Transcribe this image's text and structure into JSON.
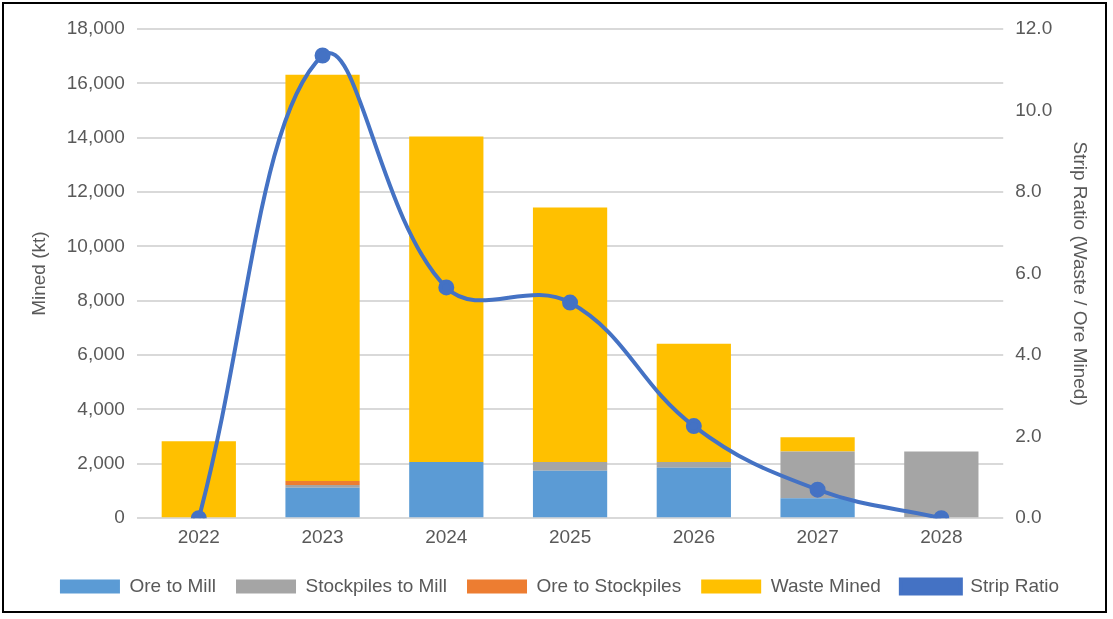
{
  "chart_data": {
    "type": "bar",
    "stacked": true,
    "ylabel": "Mined (kt)",
    "y2label": "Strip Ratio (Waste / Ore Mined)",
    "categories": [
      "2022",
      "2023",
      "2024",
      "2025",
      "2026",
      "2027",
      "2028"
    ],
    "series": [
      {
        "name": "Ore to Mill",
        "color": "#5b9bd5",
        "values": [
          0,
          1120,
          2070,
          1750,
          1860,
          730,
          0
        ]
      },
      {
        "name": "Stockpiles to Mill",
        "color": "#a5a5a5",
        "values": [
          0,
          100,
          0,
          320,
          210,
          1720,
          2450
        ]
      },
      {
        "name": "Ore to Stockpiles",
        "color": "#ed7d31",
        "values": [
          0,
          150,
          0,
          0,
          0,
          0,
          0
        ]
      },
      {
        "name": "Waste Mined",
        "color": "#ffc000",
        "values": [
          2830,
          14950,
          11970,
          9360,
          4350,
          530,
          0
        ]
      },
      {
        "name": "Strip Ratio",
        "type": "line",
        "axis": "y2",
        "color": "#4472c4",
        "marker": "circle",
        "line_style": "solid",
        "values": [
          0,
          11.35,
          5.66,
          5.29,
          2.26,
          0.7,
          0
        ]
      }
    ],
    "ylim": [
      0,
      18000
    ],
    "yticks": [
      {
        "value": 0,
        "label": "0"
      },
      {
        "value": 2000,
        "label": "2,000"
      },
      {
        "value": 4000,
        "label": "4,000"
      },
      {
        "value": 6000,
        "label": "6,000"
      },
      {
        "value": 8000,
        "label": "8,000"
      },
      {
        "value": 10000,
        "label": "10,000"
      },
      {
        "value": 12000,
        "label": "12,000"
      },
      {
        "value": 14000,
        "label": "14,000"
      },
      {
        "value": 16000,
        "label": "16,000"
      },
      {
        "value": 18000,
        "label": "18,000"
      }
    ],
    "y2lim": [
      0,
      12
    ],
    "y2ticks": [
      {
        "value": 0,
        "label": "0.0"
      },
      {
        "value": 2,
        "label": "2.0"
      },
      {
        "value": 4,
        "label": "4.0"
      },
      {
        "value": 6,
        "label": "6.0"
      },
      {
        "value": 8,
        "label": "8.0"
      },
      {
        "value": 10,
        "label": "10.0"
      },
      {
        "value": 12,
        "label": "12.0"
      }
    ],
    "grid": "y",
    "legend": "bottom"
  }
}
